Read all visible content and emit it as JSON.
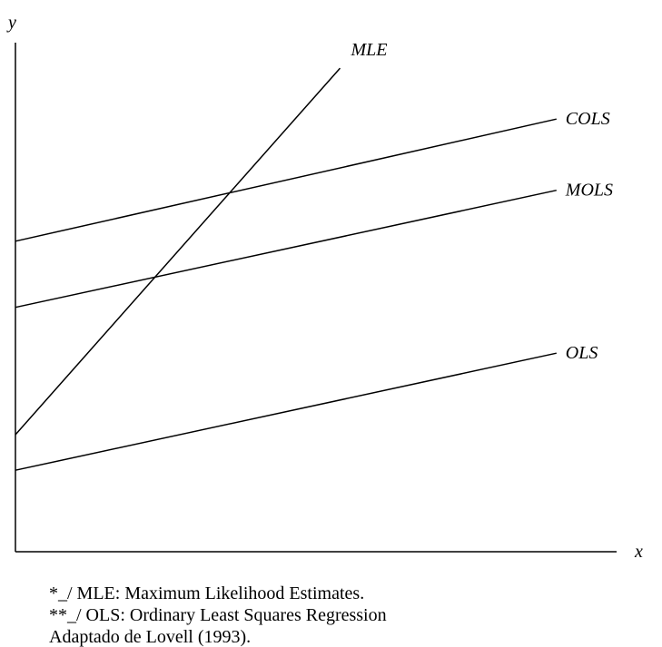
{
  "chart_data": {
    "type": "line",
    "xlabel": "x",
    "ylabel": "y",
    "xlim": [
      0,
      10
    ],
    "ylim": [
      0,
      10
    ],
    "grid": false,
    "legend": "none",
    "series": [
      {
        "name": "MLE",
        "x": [
          0,
          5.4
        ],
        "y": [
          2.3,
          9.5
        ]
      },
      {
        "name": "COLS",
        "x": [
          0,
          9.0
        ],
        "y": [
          6.1,
          8.5
        ]
      },
      {
        "name": "MOLS",
        "x": [
          0,
          9.0
        ],
        "y": [
          4.8,
          7.1
        ]
      },
      {
        "name": "OLS",
        "x": [
          0,
          9.0
        ],
        "y": [
          1.6,
          3.9
        ]
      }
    ]
  },
  "notes": [
    "*_/ MLE: Maximum Likelihood Estimates.",
    "**_/ OLS: Ordinary Least Squares Regression",
    "Adaptado de Lovell (1993)."
  ]
}
